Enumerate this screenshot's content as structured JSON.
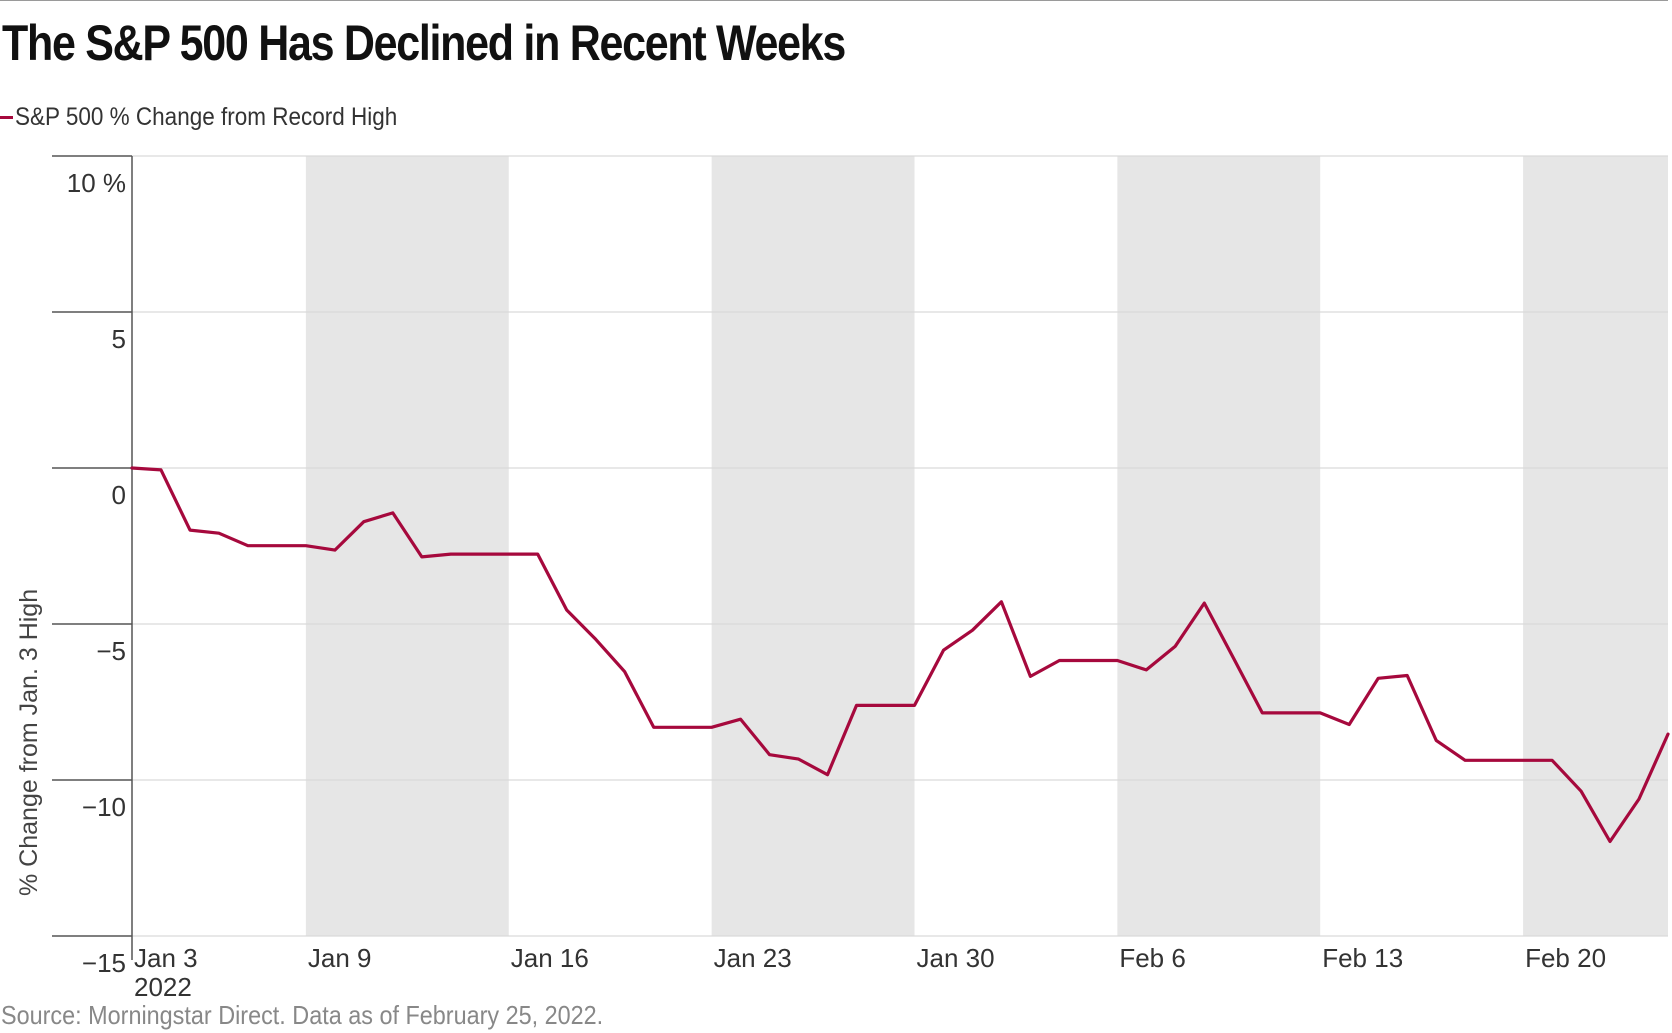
{
  "title": "The S&P 500 Has Declined in Recent Weeks",
  "source": "Source: Morningstar Direct. Data as of February 25, 2022.",
  "colors": {
    "line": "#a6093d",
    "band": "#e6e6e6",
    "grid": "#d9d9d9",
    "axis": "#555555"
  },
  "chart_data": {
    "type": "line",
    "legend": {
      "placement": "top-left"
    },
    "grid": true,
    "xlabel": "",
    "ylabel": "% Change from Jan. 3 High",
    "ylim": [
      -15,
      10
    ],
    "xlim": [
      "2022-01-03",
      "2022-02-25"
    ],
    "y_ticks": [
      {
        "value": 10,
        "label": "10 %"
      },
      {
        "value": 5,
        "label": "5"
      },
      {
        "value": 0,
        "label": "0"
      },
      {
        "value": -5,
        "label": "−5"
      },
      {
        "value": -10,
        "label": "−10"
      },
      {
        "value": -15,
        "label": "−15"
      }
    ],
    "x_ticks": [
      {
        "date": "2022-01-03",
        "label": "Jan 3",
        "sublabel": "2022"
      },
      {
        "date": "2022-01-09",
        "label": "Jan 9"
      },
      {
        "date": "2022-01-16",
        "label": "Jan 16"
      },
      {
        "date": "2022-01-23",
        "label": "Jan 23"
      },
      {
        "date": "2022-01-30",
        "label": "Jan 30"
      },
      {
        "date": "2022-02-06",
        "label": "Feb 6"
      },
      {
        "date": "2022-02-13",
        "label": "Feb 13"
      },
      {
        "date": "2022-02-20",
        "label": "Feb 20"
      }
    ],
    "shaded_weeks": [
      [
        "2022-01-09",
        "2022-01-16"
      ],
      [
        "2022-01-23",
        "2022-01-30"
      ],
      [
        "2022-02-06",
        "2022-02-13"
      ],
      [
        "2022-02-20",
        "2022-02-25"
      ]
    ],
    "series": [
      {
        "name": "S&P 500 % Change from Record High",
        "points": [
          [
            "2022-01-03",
            0.0
          ],
          [
            "2022-01-04",
            -0.06
          ],
          [
            "2022-01-05",
            -1.99
          ],
          [
            "2022-01-06",
            -2.09
          ],
          [
            "2022-01-07",
            -2.49
          ],
          [
            "2022-01-08",
            -2.49
          ],
          [
            "2022-01-09",
            -2.49
          ],
          [
            "2022-01-10",
            -2.63
          ],
          [
            "2022-01-11",
            -1.72
          ],
          [
            "2022-01-12",
            -1.44
          ],
          [
            "2022-01-13",
            -2.85
          ],
          [
            "2022-01-14",
            -2.76
          ],
          [
            "2022-01-15",
            -2.76
          ],
          [
            "2022-01-16",
            -2.76
          ],
          [
            "2022-01-17",
            -2.76
          ],
          [
            "2022-01-18",
            -4.55
          ],
          [
            "2022-01-19",
            -5.49
          ],
          [
            "2022-01-20",
            -6.53
          ],
          [
            "2022-01-21",
            -8.31
          ],
          [
            "2022-01-22",
            -8.31
          ],
          [
            "2022-01-23",
            -8.31
          ],
          [
            "2022-01-24",
            -8.05
          ],
          [
            "2022-01-25",
            -9.19
          ],
          [
            "2022-01-26",
            -9.33
          ],
          [
            "2022-01-27",
            -9.83
          ],
          [
            "2022-01-28",
            -7.61
          ],
          [
            "2022-01-29",
            -7.61
          ],
          [
            "2022-01-30",
            -7.61
          ],
          [
            "2022-01-31",
            -5.84
          ],
          [
            "2022-02-01",
            -5.2
          ],
          [
            "2022-02-02",
            -4.29
          ],
          [
            "2022-02-03",
            -6.68
          ],
          [
            "2022-02-04",
            -6.17
          ],
          [
            "2022-02-05",
            -6.17
          ],
          [
            "2022-02-06",
            -6.17
          ],
          [
            "2022-02-07",
            -6.47
          ],
          [
            "2022-02-08",
            -5.71
          ],
          [
            "2022-02-09",
            -4.33
          ],
          [
            "2022-02-10",
            -6.08
          ],
          [
            "2022-02-11",
            -7.85
          ],
          [
            "2022-02-12",
            -7.85
          ],
          [
            "2022-02-13",
            -7.85
          ],
          [
            "2022-02-14",
            -8.22
          ],
          [
            "2022-02-15",
            -6.74
          ],
          [
            "2022-02-16",
            -6.65
          ],
          [
            "2022-02-17",
            -8.73
          ],
          [
            "2022-02-18",
            -9.37
          ],
          [
            "2022-02-19",
            -9.37
          ],
          [
            "2022-02-20",
            -9.37
          ],
          [
            "2022-02-21",
            -9.37
          ],
          [
            "2022-02-22",
            -10.36
          ],
          [
            "2022-02-23",
            -11.97
          ],
          [
            "2022-02-24",
            -10.61
          ],
          [
            "2022-02-25",
            -8.53
          ]
        ]
      }
    ]
  }
}
